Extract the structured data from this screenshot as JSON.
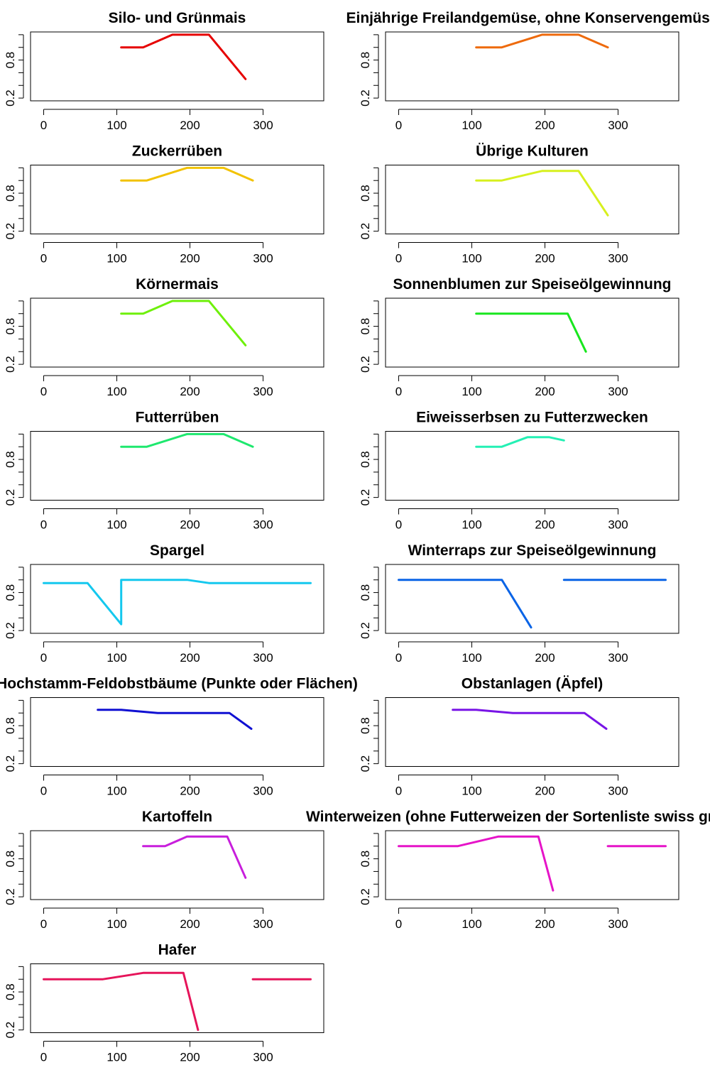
{
  "chart_data": [
    {
      "type": "line",
      "title": "Silo- und Grünmais",
      "color": "#e60000",
      "xlim": [
        0,
        365
      ],
      "ylim": [
        0.2,
        1.2
      ],
      "xticks": [
        "0",
        "100",
        "200",
        "300"
      ],
      "yticks": [
        "0.2",
        "0.8"
      ],
      "series": [
        {
          "segments": [
            [
              [
                106,
                1.0
              ],
              [
                136,
                1.0
              ],
              [
                176,
                1.2
              ],
              [
                226,
                1.2
              ],
              [
                276,
                0.5
              ]
            ]
          ]
        }
      ]
    },
    {
      "type": "line",
      "title": "Einjährige Freilandgemüse, ohne Konservengemüse",
      "color": "#ee6a0c",
      "xlim": [
        0,
        365
      ],
      "ylim": [
        0.2,
        1.2
      ],
      "xticks": [
        "0",
        "100",
        "200",
        "300"
      ],
      "yticks": [
        "0.2",
        "0.8"
      ],
      "series": [
        {
          "segments": [
            [
              [
                106,
                1.0
              ],
              [
                141,
                1.0
              ],
              [
                196,
                1.2
              ],
              [
                246,
                1.2
              ],
              [
                286,
                1.0
              ]
            ]
          ]
        }
      ]
    },
    {
      "type": "line",
      "title": "Zuckerrüben",
      "color": "#f2c200",
      "xlim": [
        0,
        365
      ],
      "ylim": [
        0.2,
        1.2
      ],
      "xticks": [
        "0",
        "100",
        "200",
        "300"
      ],
      "yticks": [
        "0.2",
        "0.8"
      ],
      "series": [
        {
          "segments": [
            [
              [
                106,
                1.0
              ],
              [
                141,
                1.0
              ],
              [
                196,
                1.2
              ],
              [
                246,
                1.2
              ],
              [
                286,
                1.0
              ]
            ]
          ]
        }
      ]
    },
    {
      "type": "line",
      "title": "Übrige Kulturen",
      "color": "#d7f01e",
      "xlim": [
        0,
        365
      ],
      "ylim": [
        0.2,
        1.2
      ],
      "xticks": [
        "0",
        "100",
        "200",
        "300"
      ],
      "yticks": [
        "0.2",
        "0.8"
      ],
      "series": [
        {
          "segments": [
            [
              [
                106,
                1.0
              ],
              [
                141,
                1.0
              ],
              [
                196,
                1.15
              ],
              [
                246,
                1.15
              ],
              [
                286,
                0.45
              ]
            ]
          ]
        }
      ]
    },
    {
      "type": "line",
      "title": "Körnermais",
      "color": "#6ef00a",
      "xlim": [
        0,
        365
      ],
      "ylim": [
        0.2,
        1.2
      ],
      "xticks": [
        "0",
        "100",
        "200",
        "300"
      ],
      "yticks": [
        "0.2",
        "0.8"
      ],
      "series": [
        {
          "segments": [
            [
              [
                106,
                1.0
              ],
              [
                136,
                1.0
              ],
              [
                176,
                1.2
              ],
              [
                226,
                1.2
              ],
              [
                276,
                0.5
              ]
            ]
          ]
        }
      ]
    },
    {
      "type": "line",
      "title": "Sonnenblumen zur Speiseölgewinnung",
      "color": "#18e61e",
      "xlim": [
        0,
        365
      ],
      "ylim": [
        0.2,
        1.2
      ],
      "xticks": [
        "0",
        "100",
        "200",
        "300"
      ],
      "yticks": [
        "0.2",
        "0.8"
      ],
      "series": [
        {
          "segments": [
            [
              [
                106,
                1.0
              ],
              [
                231,
                1.0
              ],
              [
                256,
                0.4
              ]
            ]
          ]
        }
      ]
    },
    {
      "type": "line",
      "title": "Futterrüben",
      "color": "#1ee86e",
      "xlim": [
        0,
        365
      ],
      "ylim": [
        0.2,
        1.2
      ],
      "xticks": [
        "0",
        "100",
        "200",
        "300"
      ],
      "yticks": [
        "0.2",
        "0.8"
      ],
      "series": [
        {
          "segments": [
            [
              [
                106,
                1.0
              ],
              [
                141,
                1.0
              ],
              [
                196,
                1.2
              ],
              [
                246,
                1.2
              ],
              [
                286,
                1.0
              ]
            ]
          ]
        }
      ]
    },
    {
      "type": "line",
      "title": "Eiweisserbsen zu Futterzwecken",
      "color": "#24f0b4",
      "xlim": [
        0,
        365
      ],
      "ylim": [
        0.2,
        1.2
      ],
      "xticks": [
        "0",
        "100",
        "200",
        "300"
      ],
      "yticks": [
        "0.2",
        "0.8"
      ],
      "series": [
        {
          "segments": [
            [
              [
                106,
                1.0
              ],
              [
                141,
                1.0
              ],
              [
                176,
                1.15
              ],
              [
                206,
                1.15
              ],
              [
                226,
                1.1
              ]
            ]
          ]
        }
      ]
    },
    {
      "type": "line",
      "title": "Spargel",
      "color": "#14c8ee",
      "xlim": [
        0,
        365
      ],
      "ylim": [
        0.2,
        1.2
      ],
      "xticks": [
        "0",
        "100",
        "200",
        "300"
      ],
      "yticks": [
        "0.2",
        "0.8"
      ],
      "series": [
        {
          "segments": [
            [
              [
                0,
                0.95
              ],
              [
                60,
                0.95
              ],
              [
                106,
                0.3
              ],
              [
                106,
                1.0
              ],
              [
                196,
                1.0
              ],
              [
                226,
                0.95
              ],
              [
                365,
                0.95
              ]
            ]
          ]
        }
      ]
    },
    {
      "type": "line",
      "title": "Winterraps zur Speiseölgewinnung",
      "color": "#0a64e6",
      "xlim": [
        0,
        365
      ],
      "ylim": [
        0.2,
        1.2
      ],
      "xticks": [
        "0",
        "100",
        "200",
        "300"
      ],
      "yticks": [
        "0.2",
        "0.8"
      ],
      "series": [
        {
          "segments": [
            [
              [
                0,
                1.0
              ],
              [
                141,
                1.0
              ],
              [
                181,
                0.25
              ]
            ],
            [
              [
                226,
                1.0
              ],
              [
                365,
                1.0
              ]
            ]
          ]
        }
      ]
    },
    {
      "type": "line",
      "title": "Hochstamm-Feldobstbäume (Punkte oder Flächen)",
      "color": "#1010d2",
      "xlim": [
        0,
        365
      ],
      "ylim": [
        0.2,
        1.2
      ],
      "xticks": [
        "0",
        "100",
        "200",
        "300"
      ],
      "yticks": [
        "0.2",
        "0.8"
      ],
      "series": [
        {
          "segments": [
            [
              [
                74,
                1.05
              ],
              [
                106,
                1.05
              ],
              [
                156,
                1.0
              ],
              [
                254,
                1.0
              ],
              [
                284,
                0.75
              ]
            ]
          ]
        }
      ]
    },
    {
      "type": "line",
      "title": "Obstanlagen (Äpfel)",
      "color": "#7814e6",
      "xlim": [
        0,
        365
      ],
      "ylim": [
        0.2,
        1.2
      ],
      "xticks": [
        "0",
        "100",
        "200",
        "300"
      ],
      "yticks": [
        "0.2",
        "0.8"
      ],
      "series": [
        {
          "segments": [
            [
              [
                74,
                1.05
              ],
              [
                106,
                1.05
              ],
              [
                156,
                1.0
              ],
              [
                254,
                1.0
              ],
              [
                284,
                0.75
              ]
            ]
          ]
        }
      ]
    },
    {
      "type": "line",
      "title": "Kartoffeln",
      "color": "#c81edc",
      "xlim": [
        0,
        365
      ],
      "ylim": [
        0.2,
        1.2
      ],
      "xticks": [
        "0",
        "100",
        "200",
        "300"
      ],
      "yticks": [
        "0.2",
        "0.8"
      ],
      "series": [
        {
          "segments": [
            [
              [
                136,
                1.0
              ],
              [
                166,
                1.0
              ],
              [
                196,
                1.15
              ],
              [
                251,
                1.15
              ],
              [
                276,
                0.5
              ]
            ]
          ]
        }
      ]
    },
    {
      "type": "line",
      "title": "Winterweizen (ohne Futterweizen der Sortenliste swiss granum)",
      "color": "#e614c8",
      "xlim": [
        0,
        365
      ],
      "ylim": [
        0.2,
        1.2
      ],
      "xticks": [
        "0",
        "100",
        "200",
        "300"
      ],
      "yticks": [
        "0.2",
        "0.8"
      ],
      "series": [
        {
          "segments": [
            [
              [
                0,
                1.0
              ],
              [
                81,
                1.0
              ],
              [
                136,
                1.15
              ],
              [
                191,
                1.15
              ],
              [
                211,
                0.3
              ]
            ],
            [
              [
                286,
                1.0
              ],
              [
                365,
                1.0
              ]
            ]
          ]
        }
      ]
    },
    {
      "type": "line",
      "title": "Hafer",
      "color": "#e6145a",
      "xlim": [
        0,
        365
      ],
      "ylim": [
        0.2,
        1.2
      ],
      "xticks": [
        "0",
        "100",
        "200",
        "300"
      ],
      "yticks": [
        "0.2",
        "0.8"
      ],
      "series": [
        {
          "segments": [
            [
              [
                0,
                1.0
              ],
              [
                81,
                1.0
              ],
              [
                136,
                1.1
              ],
              [
                191,
                1.1
              ],
              [
                211,
                0.2
              ]
            ],
            [
              [
                286,
                1.0
              ],
              [
                365,
                1.0
              ]
            ]
          ]
        }
      ]
    }
  ]
}
